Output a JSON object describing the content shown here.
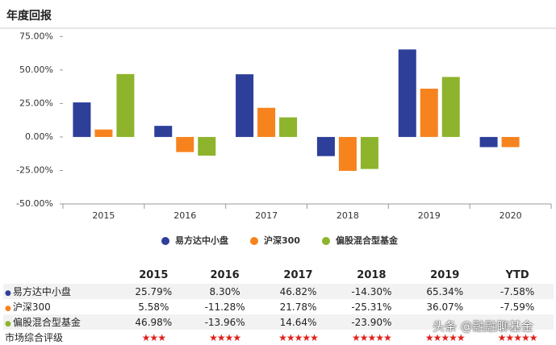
{
  "chart_data": {
    "type": "bar",
    "title": "年度回报",
    "categories": [
      "2015",
      "2016",
      "2017",
      "2018",
      "2019",
      "2020"
    ],
    "series": [
      {
        "name": "易方达中小盘",
        "color": "#2e3f9a",
        "values": [
          25.79,
          8.3,
          46.82,
          -14.3,
          65.34,
          -7.58
        ]
      },
      {
        "name": "沪深300",
        "color": "#f7831e",
        "values": [
          5.58,
          -11.28,
          21.78,
          -25.31,
          36.07,
          -7.59
        ]
      },
      {
        "name": "偏股混合型基金",
        "color": "#8db42c",
        "values": [
          46.98,
          -13.96,
          14.64,
          -23.9,
          44.81,
          null
        ]
      }
    ],
    "ylim": [
      -50,
      80
    ],
    "yticks": [
      {
        "value": -50,
        "label": "-50.00%"
      },
      {
        "value": -25,
        "label": "-25.00%"
      },
      {
        "value": 0,
        "label": "0.00%"
      },
      {
        "value": 25,
        "label": "25.00%"
      },
      {
        "value": 50,
        "label": "50.00%"
      },
      {
        "value": 75,
        "label": "75.00%"
      }
    ],
    "grid": false
  },
  "table": {
    "header": [
      "2015",
      "2016",
      "2017",
      "2018",
      "2019",
      "YTD"
    ],
    "rows": [
      {
        "label": "易方达中小盘",
        "cells": [
          "25.79%",
          "8.30%",
          "46.82%",
          "-14.30%",
          "65.34%",
          "-7.58%"
        ]
      },
      {
        "label": "沪深300",
        "cells": [
          "5.58%",
          "-11.28%",
          "21.78%",
          "-25.31%",
          "36.07%",
          "-7.59%"
        ]
      },
      {
        "label": "偏股混合型基金",
        "cells": [
          "46.98%",
          "-13.96%",
          "14.64%",
          "-23.90%",
          "",
          ""
        ]
      },
      {
        "label": "市场综合评级",
        "cells": [
          "★★★",
          "★★★★",
          "★★★★★",
          "★★★★★",
          "★★★★★",
          "★★★★★"
        ]
      }
    ]
  },
  "watermark": "头条 @融融聊基金"
}
